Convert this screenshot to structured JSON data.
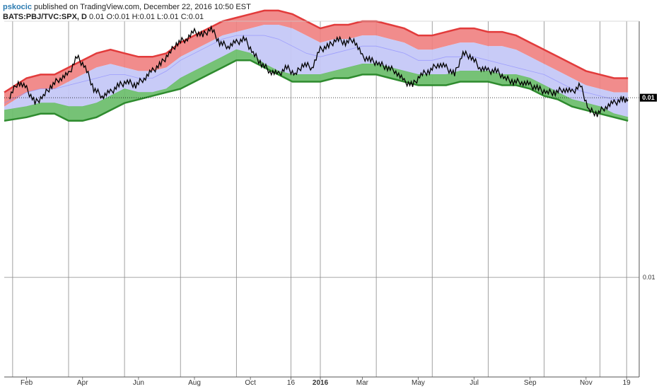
{
  "header": {
    "author": "pskocic",
    "published_text": "published on TradingView.com, December 22, 2016 10:50 EST",
    "symbol": "BATS:PBJ/TVC:SPX, D",
    "ohlc": "0.01 O:0.01 H:0.01 L:0.01 C:0.01"
  },
  "chart_data": {
    "type": "line",
    "x_tick_labels": [
      {
        "label": "Feb",
        "t": 0.5,
        "bold": false
      },
      {
        "label": "Apr",
        "t": 2.5,
        "bold": false
      },
      {
        "label": "Jun",
        "t": 4.5,
        "bold": false
      },
      {
        "label": "Aug",
        "t": 6.5,
        "bold": false
      },
      {
        "label": "Oct",
        "t": 8.5,
        "bold": false
      },
      {
        "label": "16",
        "t": 9.95,
        "bold": false
      },
      {
        "label": "2016",
        "t": 11.0,
        "bold": true
      },
      {
        "label": "Mar",
        "t": 12.5,
        "bold": false
      },
      {
        "label": "May",
        "t": 14.5,
        "bold": false
      },
      {
        "label": "Jul",
        "t": 16.5,
        "bold": false
      },
      {
        "label": "Sep",
        "t": 18.5,
        "bold": false
      },
      {
        "label": "Nov",
        "t": 20.5,
        "bold": false
      },
      {
        "label": "19",
        "t": 21.95,
        "bold": false
      }
    ],
    "x_grid_t": [
      0.0,
      2.0,
      4.0,
      6.0,
      8.0,
      9.95,
      11.0,
      13.0,
      15.0,
      17.0,
      19.0,
      21.0,
      21.95
    ],
    "y_tick_labels": [
      "0.01",
      "0.01"
    ],
    "last_value_label": "0.01",
    "x_range": [
      -0.3,
      22.4
    ],
    "y_range": [
      0,
      100
    ],
    "reference_level": 78.5,
    "lower_grid_level": 28,
    "series": [
      {
        "role": "price",
        "color": "#000000",
        "x": [
          -0.1,
          0.2,
          0.5,
          0.8,
          1.1,
          1.4,
          1.7,
          2.0,
          2.3,
          2.6,
          2.9,
          3.2,
          3.5,
          3.8,
          4.1,
          4.4,
          4.7,
          5.0,
          5.3,
          5.6,
          5.9,
          6.2,
          6.5,
          6.8,
          7.1,
          7.4,
          7.7,
          8.0,
          8.3,
          8.6,
          8.9,
          9.2,
          9.5,
          9.8,
          10.1,
          10.4,
          10.7,
          11.0,
          11.3,
          11.6,
          11.9,
          12.2,
          12.5,
          12.8,
          13.1,
          13.4,
          13.7,
          14.0,
          14.3,
          14.6,
          14.9,
          15.2,
          15.5,
          15.8,
          16.1,
          16.4,
          16.7,
          17.0,
          17.3,
          17.6,
          17.9,
          18.2,
          18.5,
          18.8,
          19.1,
          19.4,
          19.7,
          20.0,
          20.3,
          20.6,
          20.9,
          21.2,
          21.5,
          21.8,
          22.0
        ],
        "y": [
          79,
          83,
          81,
          77,
          79,
          82,
          84,
          85,
          90,
          87,
          81,
          79,
          80,
          82,
          83,
          82,
          84,
          86,
          88,
          91,
          94,
          95,
          97,
          96,
          98,
          94,
          93,
          94,
          95,
          91,
          88,
          86,
          85,
          87,
          85,
          88,
          87,
          92,
          93,
          95,
          94,
          95,
          90,
          89,
          88,
          87,
          86,
          83,
          82,
          85,
          86,
          88,
          87,
          85,
          91,
          90,
          87,
          86,
          86,
          84,
          83,
          83,
          82,
          81,
          80,
          80,
          81,
          80,
          82,
          75,
          74,
          76,
          77,
          78,
          78
        ]
      },
      {
        "role": "upper-band",
        "color": "#e23b3b",
        "x": [
          -0.3,
          0.5,
          1.0,
          1.5,
          2.0,
          2.5,
          3.0,
          3.5,
          4.0,
          4.5,
          5.0,
          5.5,
          6.0,
          6.5,
          7.0,
          7.5,
          8.0,
          8.5,
          9.0,
          9.5,
          10.0,
          10.5,
          11.0,
          11.5,
          12.0,
          12.5,
          13.0,
          13.5,
          14.0,
          14.5,
          15.0,
          15.5,
          16.0,
          16.5,
          17.0,
          17.5,
          18.0,
          18.5,
          19.0,
          19.5,
          20.0,
          20.5,
          21.0,
          21.5,
          22.0
        ],
        "y": [
          80,
          84,
          85,
          85,
          87,
          89,
          91,
          92,
          91,
          90,
          90,
          91,
          94,
          96,
          98,
          100,
          101,
          102,
          103,
          103,
          102,
          100,
          98,
          99,
          99,
          100,
          100,
          99,
          98,
          96,
          96,
          97,
          98,
          98,
          97,
          97,
          96,
          94,
          92,
          90,
          88,
          86,
          85,
          84,
          84
        ]
      },
      {
        "role": "mid-band",
        "color": "#8a8aff",
        "x": [
          -0.3,
          0.5,
          1.0,
          1.5,
          2.0,
          2.5,
          3.0,
          3.5,
          4.0,
          4.5,
          5.0,
          5.5,
          6.0,
          6.5,
          7.0,
          7.5,
          8.0,
          8.5,
          9.0,
          9.5,
          10.0,
          10.5,
          11.0,
          11.5,
          12.0,
          12.5,
          13.0,
          13.5,
          14.0,
          14.5,
          15.0,
          15.5,
          16.0,
          16.5,
          17.0,
          17.5,
          18.0,
          18.5,
          19.0,
          19.5,
          20.0,
          20.5,
          21.0,
          21.5,
          22.0
        ],
        "y": [
          77,
          80,
          81,
          81,
          82,
          83,
          84,
          85,
          85,
          84,
          84,
          86,
          89,
          91,
          93,
          95,
          96,
          96,
          96,
          95,
          93,
          91,
          90,
          91,
          92,
          93,
          93,
          92,
          91,
          89,
          89,
          90,
          90,
          90,
          89,
          88,
          87,
          86,
          85,
          83,
          81,
          80,
          79,
          78,
          78
        ]
      },
      {
        "role": "lower-band",
        "color": "#2e8b2e",
        "x": [
          -0.3,
          0.5,
          1.0,
          1.5,
          2.0,
          2.5,
          3.0,
          3.5,
          4.0,
          4.5,
          5.0,
          5.5,
          6.0,
          6.5,
          7.0,
          7.5,
          8.0,
          8.5,
          9.0,
          9.5,
          10.0,
          10.5,
          11.0,
          11.5,
          12.0,
          12.5,
          13.0,
          13.5,
          14.0,
          14.5,
          15.0,
          15.5,
          16.0,
          16.5,
          17.0,
          17.5,
          18.0,
          18.5,
          19.0,
          19.5,
          20.0,
          20.5,
          21.0,
          21.5,
          22.0
        ],
        "y": [
          75,
          76,
          77,
          77,
          76,
          76,
          77,
          79,
          81,
          80,
          80,
          81,
          84,
          86,
          88,
          90,
          92,
          91,
          88,
          86,
          85,
          85,
          85,
          86,
          87,
          88,
          88,
          87,
          86,
          85,
          85,
          85,
          86,
          86,
          86,
          85,
          85,
          84,
          82,
          80,
          78,
          77,
          76,
          74,
          73
        ]
      },
      {
        "role": "lower-band-outer",
        "color": "#2e8b2e",
        "x": [
          -0.3,
          0.5,
          1.0,
          1.5,
          2.0,
          2.5,
          3.0,
          3.5,
          4.0,
          4.5,
          5.0,
          5.5,
          6.0,
          6.5,
          7.0,
          7.5,
          8.0,
          8.5,
          9.0,
          9.5,
          10.0,
          10.5,
          11.0,
          11.5,
          12.0,
          12.5,
          13.0,
          13.5,
          14.0,
          14.5,
          15.0,
          15.5,
          16.0,
          16.5,
          17.0,
          17.5,
          18.0,
          18.5,
          19.0,
          19.5,
          20.0,
          20.5,
          21.0,
          21.5,
          22.0
        ],
        "y": [
          72,
          73,
          74,
          74,
          72,
          72,
          73,
          75,
          77,
          78,
          79,
          80,
          81,
          83,
          85,
          87,
          89,
          89,
          87,
          85,
          83,
          83,
          83,
          84,
          84,
          85,
          85,
          84,
          83,
          82,
          82,
          82,
          83,
          83,
          83,
          82,
          82,
          81,
          79,
          78,
          76,
          75,
          74,
          73,
          72
        ]
      }
    ],
    "colors": {
      "red_fill": "#f07f7f",
      "blue_fill": "#c5c8f7",
      "green_fill": "#6fbf6f",
      "grid": "#8a8a8a",
      "axis_tag_bg": "#000000"
    }
  }
}
